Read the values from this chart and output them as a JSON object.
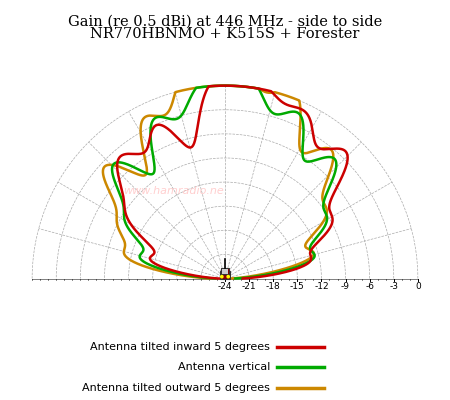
{
  "title_line1": "Gain (re 0.5 dBi) at 446 MHz - side to side",
  "title_line2": "NR770HBNMO + K515S + Forester",
  "title_fontsize": 10.5,
  "background_color": "#ffffff",
  "grid_color": "#aaaaaa",
  "r_min": -24,
  "r_max": 0,
  "r_ticks": [
    -24,
    -21,
    -18,
    -15,
    -12,
    -9,
    -6,
    -3,
    0
  ],
  "colors": {
    "inward": "#cc0000",
    "vertical": "#00aa00",
    "outward": "#cc8800"
  },
  "legend": [
    {
      "label": "Antenna tilted inward 5 degrees",
      "color": "#cc0000"
    },
    {
      "label": "Antenna vertical",
      "color": "#00aa00"
    },
    {
      "label": "Antenna tilted outward 5 degrees",
      "color": "#cc8800"
    }
  ],
  "watermark": "www.hamradio.ne"
}
